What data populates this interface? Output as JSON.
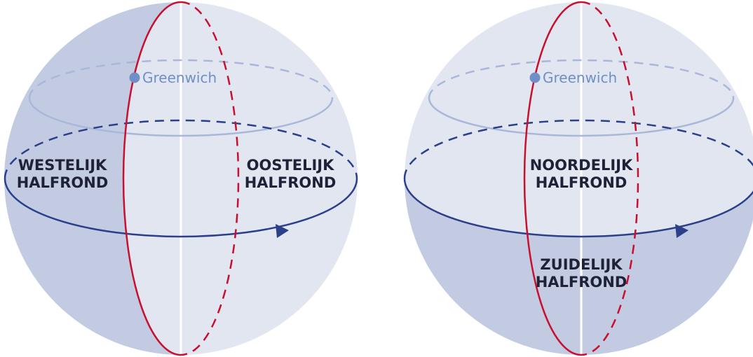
{
  "colors": {
    "sphere_light": "#e2e6f1",
    "sphere_shade": "#c3cbe3",
    "meridian": "#c8102e",
    "equator": "#2b3f8a",
    "parallel": "#a9b7d9",
    "greenwich_dot": "#6f8fc6",
    "axis": "#ffffff"
  },
  "left_globe": {
    "greenwich_label": "Greenwich",
    "west_label_line1": "WESTELIJK",
    "west_label_line2": "HALFROND",
    "east_label_line1": "OOSTELIJK",
    "east_label_line2": "HALFROND"
  },
  "right_globe": {
    "greenwich_label": "Greenwich",
    "north_label_line1": "NOORDELIJK",
    "north_label_line2": "HALFROND",
    "south_label_line1": "ZUIDELIJK",
    "south_label_line2": "HALFROND"
  }
}
